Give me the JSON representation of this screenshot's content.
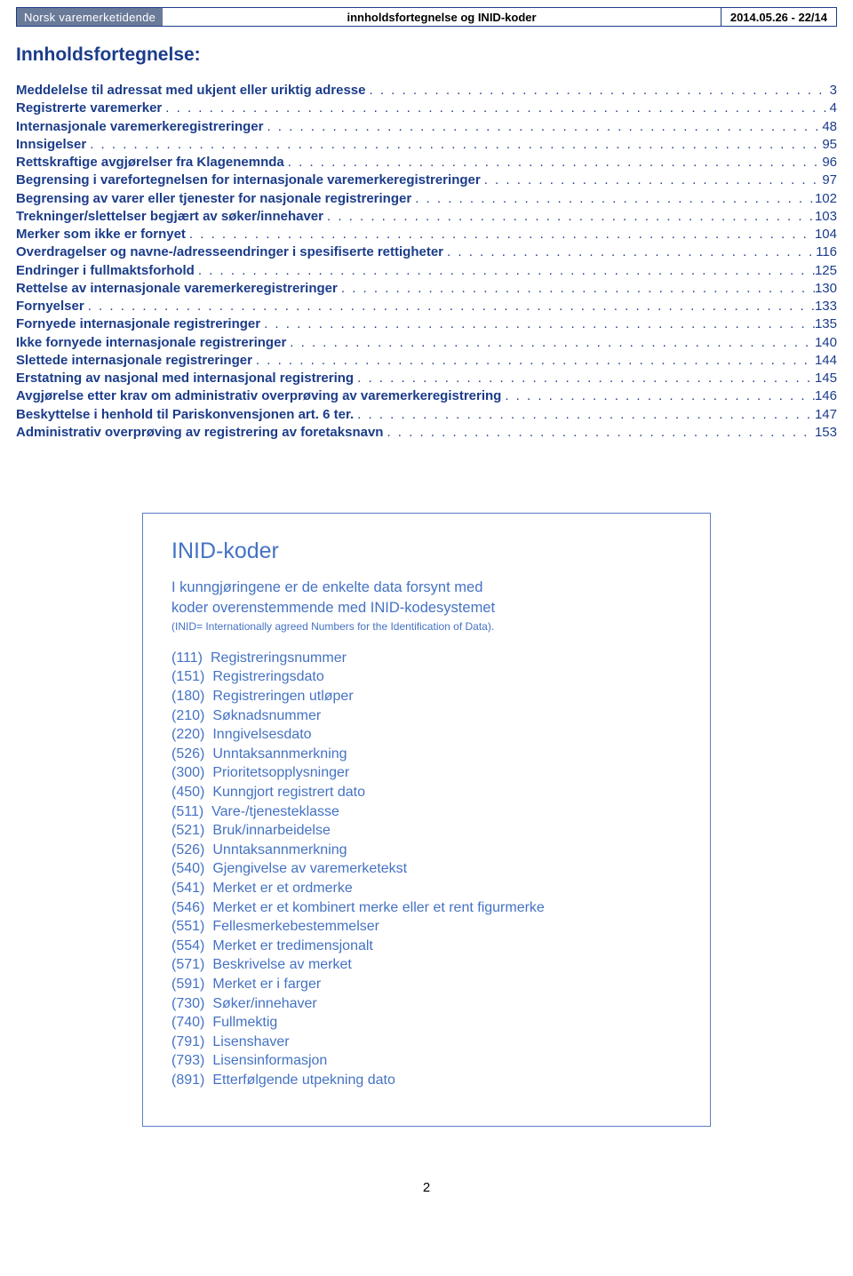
{
  "header": {
    "brand": "Norsk varemerketidende",
    "center": "innholdsfortegnelse og INID-koder",
    "right": "2014.05.26 - 22/14"
  },
  "toc": {
    "title": "Innholdsfortegnelse:",
    "items": [
      {
        "label": "Meddelelse til adressat med ukjent eller uriktig adresse",
        "page": "3"
      },
      {
        "label": "Registrerte varemerker",
        "page": "4"
      },
      {
        "label": "Internasjonale varemerkeregistreringer",
        "page": "48"
      },
      {
        "label": "Innsigelser",
        "page": "95"
      },
      {
        "label": "Rettskraftige avgjørelser fra Klagenemnda",
        "page": "96"
      },
      {
        "label": "Begrensing i varefortegnelsen for internasjonale varemerkeregistreringer",
        "page": "97"
      },
      {
        "label": "Begrensing av varer eller tjenester for nasjonale registreringer",
        "page": "102"
      },
      {
        "label": "Trekninger/slettelser begjært av søker/innehaver",
        "page": "103"
      },
      {
        "label": "Merker som ikke er fornyet",
        "page": "104"
      },
      {
        "label": "Overdragelser og navne-/adresseendringer i spesifiserte rettigheter",
        "page": "116"
      },
      {
        "label": "Endringer i fullmaktsforhold",
        "page": "125"
      },
      {
        "label": "Rettelse av internasjonale varemerkeregistreringer",
        "page": "130"
      },
      {
        "label": "Fornyelser",
        "page": "133"
      },
      {
        "label": "Fornyede internasjonale registreringer",
        "page": "135"
      },
      {
        "label": "Ikke fornyede internasjonale registreringer",
        "page": "140"
      },
      {
        "label": "Slettede internasjonale registreringer",
        "page": "144"
      },
      {
        "label": "Erstatning av nasjonal med internasjonal registrering",
        "page": "145"
      },
      {
        "label": "Avgjørelse etter krav om administrativ overprøving av varemerkeregistrering",
        "page": "146"
      },
      {
        "label": "Beskyttelse i henhold til Pariskonvensjonen art. 6 ter.",
        "page": "147"
      },
      {
        "label": "Administrativ overprøving av registrering av foretaksnavn",
        "page": "153"
      }
    ]
  },
  "inid": {
    "title": "INID-koder",
    "intro_line1": "I kunngjøringene er de enkelte data forsynt med",
    "intro_line2": "koder overenstemmende med INID-kodesystemet",
    "subnote": "(INID= Internationally agreed Numbers for the Identification of Data).",
    "codes": [
      {
        "code": "(111)",
        "desc": "Registreringsnummer"
      },
      {
        "code": "(151)",
        "desc": "Registreringsdato"
      },
      {
        "code": "(180)",
        "desc": "Registreringen utløper"
      },
      {
        "code": "(210)",
        "desc": "Søknadsnummer"
      },
      {
        "code": "(220)",
        "desc": "Inngivelsesdato"
      },
      {
        "code": "(526)",
        "desc": "Unntaksannmerkning"
      },
      {
        "code": "(300)",
        "desc": "Prioritetsopplysninger"
      },
      {
        "code": "(450)",
        "desc": "Kunngjort registrert dato"
      },
      {
        "code": "(511)",
        "desc": "Vare-/tjenesteklasse"
      },
      {
        "code": "(521)",
        "desc": "Bruk/innarbeidelse"
      },
      {
        "code": "(526)",
        "desc": "Unntaksannmerkning"
      },
      {
        "code": "(540)",
        "desc": "Gjengivelse av varemerketekst"
      },
      {
        "code": "(541)",
        "desc": "Merket er et ordmerke"
      },
      {
        "code": "(546)",
        "desc": "Merket er et kombinert merke eller et rent figurmerke"
      },
      {
        "code": "(551)",
        "desc": "Fellesmerkebestemmelser"
      },
      {
        "code": "(554)",
        "desc": "Merket er tredimensjonalt"
      },
      {
        "code": "(571)",
        "desc": "Beskrivelse av merket"
      },
      {
        "code": "(591)",
        "desc": "Merket er i farger"
      },
      {
        "code": "(730)",
        "desc": "Søker/innehaver"
      },
      {
        "code": "(740)",
        "desc": "Fullmektig"
      },
      {
        "code": "(791)",
        "desc": "Lisenshaver"
      },
      {
        "code": "(793)",
        "desc": "Lisensinformasjon"
      },
      {
        "code": "(891)",
        "desc": "Etterfølgende utpekning dato"
      }
    ]
  },
  "page_number": "2",
  "colors": {
    "toc_text": "#1b3c8a",
    "inid_text": "#4472c4",
    "header_bg": "#6a7a99",
    "border": "#5a7ec5"
  }
}
